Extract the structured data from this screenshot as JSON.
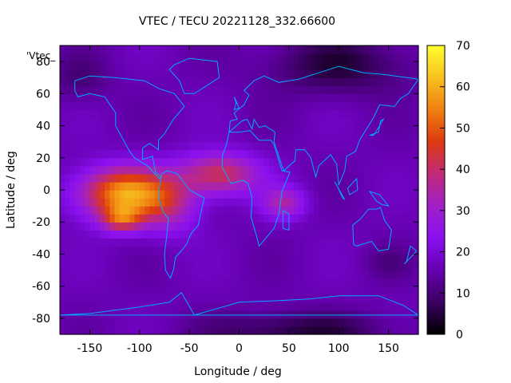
{
  "chart_data": {
    "type": "heatmap",
    "title": "VTEC / TECU 20221128_332.66600",
    "key_label": "'Vtec_",
    "xlabel": "Longitude / deg",
    "ylabel": "Latitude / deg",
    "xlim": [
      -180,
      180
    ],
    "ylim": [
      -90,
      90
    ],
    "x_ticks": [
      -150,
      -100,
      -50,
      0,
      50,
      100,
      150
    ],
    "y_ticks": [
      -80,
      -60,
      -40,
      -20,
      0,
      20,
      40,
      60,
      80
    ],
    "colorbar": {
      "range": [
        0,
        70
      ],
      "ticks": [
        0,
        10,
        20,
        30,
        40,
        50,
        60,
        70
      ],
      "palette": [
        "#000000",
        "#3a0060",
        "#6600b0",
        "#8a10f0",
        "#a020c8",
        "#c02a78",
        "#dd3a10",
        "#f08010",
        "#f8c020",
        "#ffff30"
      ]
    },
    "background_level_tecu": 16,
    "features": [
      {
        "name": "equatorial anomaly core",
        "lon": -115,
        "lat": -2,
        "peak_tecu": 60
      },
      {
        "name": "southern crest",
        "lon": -118,
        "lat": -18,
        "peak_tecu": 58
      },
      {
        "name": "Atlantic arc",
        "lon": -20,
        "lat": 10,
        "peak_tecu": 42
      },
      {
        "name": "Africa extension",
        "lon": 45,
        "lat": -8,
        "peak_tecu": 33
      },
      {
        "name": "north polar low",
        "lon": 100,
        "lat": 78,
        "peak_tecu": 5
      },
      {
        "name": "south polar low",
        "lon": 60,
        "lat": -88,
        "peak_tecu": 5
      }
    ],
    "overlay": "coastlines",
    "coastline_color": "#00aaff",
    "grid": false
  }
}
